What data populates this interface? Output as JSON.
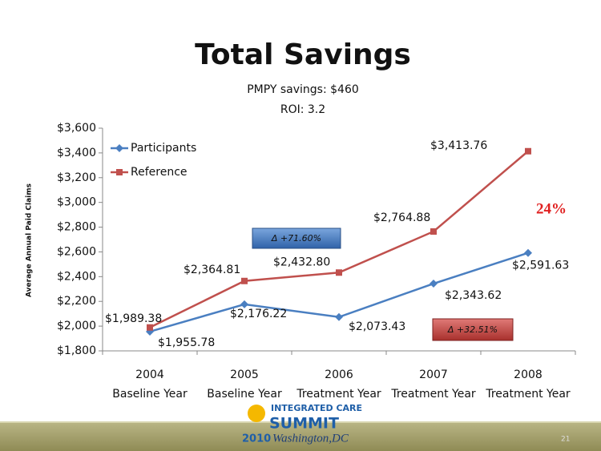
{
  "chart_data": {
    "type": "line",
    "title": "Total Savings",
    "subtitle": [
      "PMPY savings: $460",
      "ROI: 3.2"
    ],
    "y_label": "Average Annual Paid Claims",
    "categories": [
      [
        "2004",
        "Baseline Year"
      ],
      [
        "2005",
        "Baseline Year"
      ],
      [
        "2006",
        "Treatment Year"
      ],
      [
        "2007",
        "Treatment Year"
      ],
      [
        "2008",
        "Treatment Year"
      ]
    ],
    "series": [
      {
        "name": "Participants",
        "color": "#4a7fc1",
        "marker": "diamond",
        "values": [
          1955.78,
          2176.22,
          2073.43,
          2343.62,
          2591.63
        ],
        "value_labels": [
          "$1,955.78",
          "$2,176.22",
          "$2,073.43",
          "$2,343.62",
          "$2,591.63"
        ]
      },
      {
        "name": "Reference",
        "color": "#c0504d",
        "marker": "square",
        "values": [
          1989.38,
          2364.81,
          2432.8,
          2764.88,
          3413.76
        ],
        "value_labels": [
          "$1,989.38",
          "$2,364.81",
          "$2,432.80",
          "$2,764.88",
          "$3,413.76"
        ]
      }
    ],
    "ylim": [
      1800,
      3600
    ],
    "yticks": [
      {
        "value": 1800,
        "label": "$1,800"
      },
      {
        "value": 2000,
        "label": "$2,000"
      },
      {
        "value": 2200,
        "label": "$2,200"
      },
      {
        "value": 2400,
        "label": "$2,400"
      },
      {
        "value": 2600,
        "label": "$2,600"
      },
      {
        "value": 2800,
        "label": "$2,800"
      },
      {
        "value": 3000,
        "label": "$3,000"
      },
      {
        "value": 3200,
        "label": "$3,200"
      },
      {
        "value": 3400,
        "label": "$3,400"
      },
      {
        "value": 3600,
        "label": "$3,600"
      }
    ],
    "legend": "top-left",
    "annotations": [
      "Δ +71.60%",
      "Δ +32.51%",
      "24%"
    ]
  },
  "footer": {
    "logo": [
      "INTEGRATED CARE",
      "SUMMIT",
      "2010",
      "Washington,DC"
    ],
    "page": "21"
  }
}
